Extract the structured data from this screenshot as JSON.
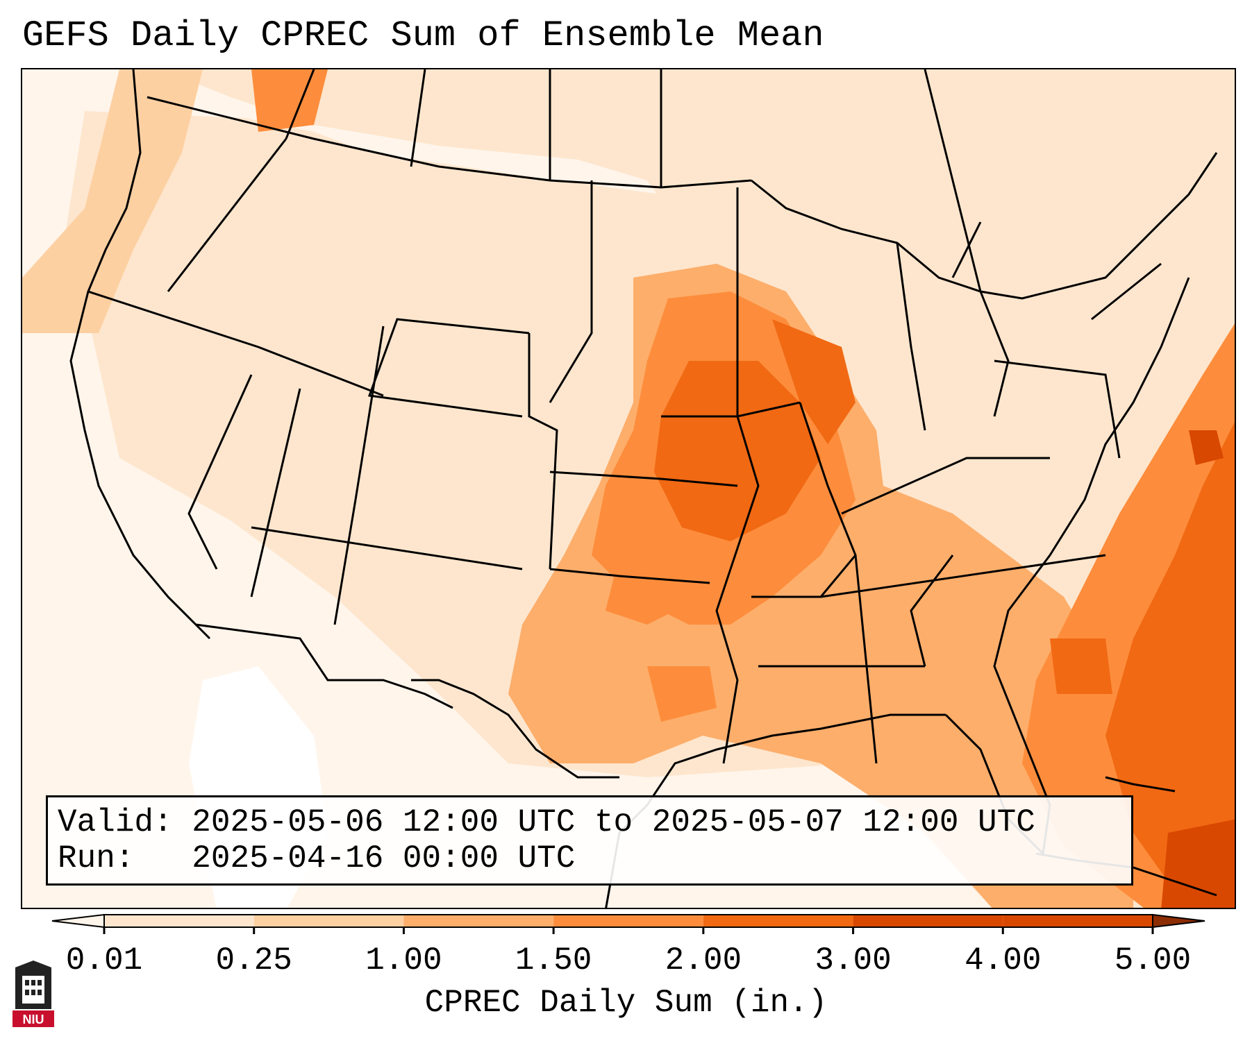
{
  "title": "GEFS Daily CPREC Sum of Ensemble Mean",
  "info": {
    "valid_label": "Valid:",
    "valid_value": "2025-05-06 12:00 UTC to 2025-05-07 12:00 UTC",
    "run_label": "Run:",
    "run_value": "2025-04-16 00:00 UTC"
  },
  "colorbar": {
    "label": "CPREC Daily Sum (in.)",
    "ticks": [
      "0.01",
      "0.25",
      "1.00",
      "1.50",
      "2.00",
      "3.00",
      "4.00",
      "5.00"
    ],
    "colors": [
      "#fff5eb",
      "#fee6ce",
      "#fdd0a2",
      "#fdae6b",
      "#fd8d3c",
      "#f16913",
      "#d94801",
      "#8c2d04"
    ]
  },
  "logo": {
    "text": "NIU",
    "color": "#c8102e"
  }
}
